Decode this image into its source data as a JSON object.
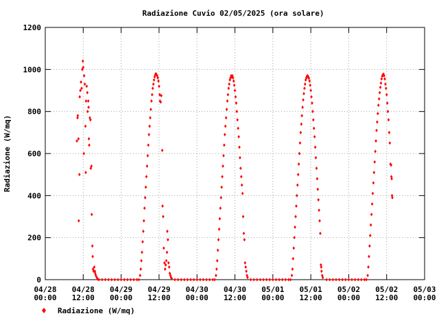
{
  "chart_data": {
    "type": "scatter",
    "title": "Radiazione Cuvio 02/05/2025 (ora solare)",
    "xlabel": "",
    "ylabel": "Radiazione (W/mq)",
    "x_unit": "hours since 04/28 00:00",
    "xlim": [
      0,
      120
    ],
    "ylim": [
      0,
      1200
    ],
    "grid": true,
    "legend_position": "bottom-left",
    "yticks": [
      0,
      200,
      400,
      600,
      800,
      1000,
      1200
    ],
    "xticks": [
      {
        "x": 0,
        "date": "04/28",
        "time": "00:00"
      },
      {
        "x": 12,
        "date": "04/28",
        "time": "12:00"
      },
      {
        "x": 24,
        "date": "04/29",
        "time": "00:00"
      },
      {
        "x": 36,
        "date": "04/29",
        "time": "12:00"
      },
      {
        "x": 48,
        "date": "04/30",
        "time": "00:00"
      },
      {
        "x": 60,
        "date": "04/30",
        "time": "12:00"
      },
      {
        "x": 72,
        "date": "05/01",
        "time": "00:00"
      },
      {
        "x": 84,
        "date": "05/01",
        "time": "12:00"
      },
      {
        "x": 96,
        "date": "05/02",
        "time": "00:00"
      },
      {
        "x": 108,
        "date": "05/02",
        "time": "12:00"
      },
      {
        "x": 120,
        "date": "05/03",
        "time": "00:00"
      }
    ],
    "series": [
      {
        "name": "Radiazione (W/mq)",
        "color": "#ff0000",
        "points": [
          [
            10.0,
            660
          ],
          [
            10.2,
            770
          ],
          [
            10.3,
            780
          ],
          [
            10.5,
            670
          ],
          [
            10.6,
            280
          ],
          [
            10.8,
            500
          ],
          [
            10.9,
            870
          ],
          [
            11.1,
            900
          ],
          [
            11.3,
            940
          ],
          [
            11.5,
            910
          ],
          [
            11.7,
            1000
          ],
          [
            11.9,
            1040
          ],
          [
            12.0,
            1010
          ],
          [
            12.2,
            600
          ],
          [
            12.3,
            970
          ],
          [
            12.5,
            930
          ],
          [
            12.7,
            730
          ],
          [
            12.8,
            510
          ],
          [
            12.9,
            850
          ],
          [
            13.1,
            920
          ],
          [
            13.3,
            890
          ],
          [
            13.4,
            800
          ],
          [
            13.6,
            850
          ],
          [
            13.7,
            820
          ],
          [
            13.8,
            670
          ],
          [
            13.9,
            640
          ],
          [
            14.1,
            770
          ],
          [
            14.3,
            760
          ],
          [
            14.4,
            530
          ],
          [
            14.6,
            540
          ],
          [
            14.7,
            310
          ],
          [
            14.9,
            160
          ],
          [
            15.0,
            110
          ],
          [
            15.1,
            50
          ],
          [
            15.3,
            40
          ],
          [
            15.5,
            60
          ],
          [
            15.7,
            40
          ],
          [
            15.8,
            30
          ],
          [
            16.0,
            20
          ],
          [
            16.3,
            10
          ],
          [
            16.6,
            2
          ],
          [
            17,
            0
          ],
          [
            18,
            0
          ],
          [
            19,
            0
          ],
          [
            20,
            0
          ],
          [
            21,
            0
          ],
          [
            22,
            0
          ],
          [
            23,
            0
          ],
          [
            24,
            0
          ],
          [
            25,
            0
          ],
          [
            26,
            0
          ],
          [
            27,
            0
          ],
          [
            28,
            0
          ],
          [
            29,
            0
          ],
          [
            29.6,
            0
          ],
          [
            30.0,
            20
          ],
          [
            30.2,
            50
          ],
          [
            30.4,
            90
          ],
          [
            30.6,
            130
          ],
          [
            30.8,
            180
          ],
          [
            31.0,
            230
          ],
          [
            31.2,
            280
          ],
          [
            31.4,
            340
          ],
          [
            31.6,
            390
          ],
          [
            31.8,
            440
          ],
          [
            32.0,
            490
          ],
          [
            32.2,
            540
          ],
          [
            32.4,
            590
          ],
          [
            32.6,
            640
          ],
          [
            32.8,
            690
          ],
          [
            33.0,
            730
          ],
          [
            33.2,
            770
          ],
          [
            33.4,
            810
          ],
          [
            33.6,
            850
          ],
          [
            33.8,
            880
          ],
          [
            34.0,
            910
          ],
          [
            34.2,
            930
          ],
          [
            34.4,
            950
          ],
          [
            34.6,
            965
          ],
          [
            34.8,
            975
          ],
          [
            35.0,
            980
          ],
          [
            35.2,
            975
          ],
          [
            35.4,
            970
          ],
          [
            35.6,
            960
          ],
          [
            35.8,
            945
          ],
          [
            36.0,
            920
          ],
          [
            36.2,
            880
          ],
          [
            36.3,
            850
          ],
          [
            36.5,
            845
          ],
          [
            36.7,
            875
          ],
          [
            37.0,
            615
          ],
          [
            37.1,
            350
          ],
          [
            37.3,
            300
          ],
          [
            37.5,
            150
          ],
          [
            37.7,
            80
          ],
          [
            37.9,
            50
          ],
          [
            38.1,
            70
          ],
          [
            38.3,
            90
          ],
          [
            38.5,
            130
          ],
          [
            38.6,
            230
          ],
          [
            38.8,
            190
          ],
          [
            39.0,
            80
          ],
          [
            39.2,
            60
          ],
          [
            39.4,
            30
          ],
          [
            39.6,
            20
          ],
          [
            39.8,
            10
          ],
          [
            40.0,
            5
          ],
          [
            41,
            0
          ],
          [
            42,
            0
          ],
          [
            43,
            0
          ],
          [
            44,
            0
          ],
          [
            45,
            0
          ],
          [
            46,
            0
          ],
          [
            47,
            0
          ],
          [
            48,
            0
          ],
          [
            49,
            0
          ],
          [
            50,
            0
          ],
          [
            51,
            0
          ],
          [
            52,
            0
          ],
          [
            53,
            0
          ],
          [
            53.6,
            0
          ],
          [
            54.0,
            20
          ],
          [
            54.2,
            50
          ],
          [
            54.4,
            90
          ],
          [
            54.6,
            140
          ],
          [
            54.8,
            190
          ],
          [
            55.0,
            240
          ],
          [
            55.2,
            290
          ],
          [
            55.4,
            340
          ],
          [
            55.6,
            390
          ],
          [
            55.8,
            440
          ],
          [
            56.0,
            490
          ],
          [
            56.2,
            540
          ],
          [
            56.4,
            590
          ],
          [
            56.6,
            640
          ],
          [
            56.8,
            690
          ],
          [
            57.0,
            730
          ],
          [
            57.2,
            770
          ],
          [
            57.4,
            810
          ],
          [
            57.6,
            850
          ],
          [
            57.8,
            880
          ],
          [
            58.0,
            910
          ],
          [
            58.2,
            930
          ],
          [
            58.4,
            950
          ],
          [
            58.6,
            960
          ],
          [
            58.8,
            970
          ],
          [
            59.0,
            965
          ],
          [
            59.2,
            970
          ],
          [
            59.4,
            960
          ],
          [
            59.6,
            945
          ],
          [
            59.8,
            925
          ],
          [
            60.0,
            900
          ],
          [
            60.2,
            870
          ],
          [
            60.4,
            840
          ],
          [
            60.6,
            800
          ],
          [
            60.8,
            760
          ],
          [
            61.0,
            720
          ],
          [
            61.2,
            680
          ],
          [
            61.4,
            630
          ],
          [
            61.6,
            580
          ],
          [
            61.8,
            530
          ],
          [
            62.0,
            490
          ],
          [
            62.2,
            450
          ],
          [
            62.4,
            410
          ],
          [
            62.6,
            300
          ],
          [
            62.8,
            220
          ],
          [
            63.0,
            190
          ],
          [
            63.2,
            80
          ],
          [
            63.4,
            60
          ],
          [
            63.6,
            40
          ],
          [
            63.8,
            20
          ],
          [
            64.0,
            10
          ],
          [
            65,
            0
          ],
          [
            66,
            0
          ],
          [
            67,
            0
          ],
          [
            68,
            0
          ],
          [
            69,
            0
          ],
          [
            70,
            0
          ],
          [
            71,
            0
          ],
          [
            72,
            0
          ],
          [
            73,
            0
          ],
          [
            74,
            0
          ],
          [
            75,
            0
          ],
          [
            76,
            0
          ],
          [
            77,
            0
          ],
          [
            77.6,
            0
          ],
          [
            78.0,
            20
          ],
          [
            78.2,
            50
          ],
          [
            78.4,
            100
          ],
          [
            78.6,
            150
          ],
          [
            78.8,
            200
          ],
          [
            79.0,
            250
          ],
          [
            79.2,
            300
          ],
          [
            79.4,
            350
          ],
          [
            79.6,
            400
          ],
          [
            79.8,
            450
          ],
          [
            80.0,
            500
          ],
          [
            80.2,
            550
          ],
          [
            80.4,
            600
          ],
          [
            80.6,
            650
          ],
          [
            80.8,
            700
          ],
          [
            81.0,
            740
          ],
          [
            81.2,
            780
          ],
          [
            81.4,
            820
          ],
          [
            81.6,
            855
          ],
          [
            81.8,
            885
          ],
          [
            82.0,
            910
          ],
          [
            82.2,
            930
          ],
          [
            82.4,
            950
          ],
          [
            82.6,
            960
          ],
          [
            82.8,
            968
          ],
          [
            83.0,
            970
          ],
          [
            83.2,
            965
          ],
          [
            83.4,
            958
          ],
          [
            83.6,
            945
          ],
          [
            83.8,
            925
          ],
          [
            84.0,
            900
          ],
          [
            84.2,
            870
          ],
          [
            84.4,
            840
          ],
          [
            84.6,
            800
          ],
          [
            84.8,
            760
          ],
          [
            85.0,
            720
          ],
          [
            85.2,
            680
          ],
          [
            85.4,
            630
          ],
          [
            85.6,
            580
          ],
          [
            85.8,
            530
          ],
          [
            86.0,
            480
          ],
          [
            86.2,
            430
          ],
          [
            86.4,
            380
          ],
          [
            86.6,
            330
          ],
          [
            86.8,
            280
          ],
          [
            87.0,
            220
          ],
          [
            87.2,
            70
          ],
          [
            87.3,
            60
          ],
          [
            87.4,
            40
          ],
          [
            87.6,
            20
          ],
          [
            87.8,
            10
          ],
          [
            89,
            0
          ],
          [
            90,
            0
          ],
          [
            91,
            0
          ],
          [
            92,
            0
          ],
          [
            93,
            0
          ],
          [
            94,
            0
          ],
          [
            95,
            0
          ],
          [
            96,
            0
          ],
          [
            97,
            0
          ],
          [
            98,
            0
          ],
          [
            99,
            0
          ],
          [
            100,
            0
          ],
          [
            101,
            0
          ],
          [
            101.6,
            0
          ],
          [
            102.0,
            20
          ],
          [
            102.2,
            60
          ],
          [
            102.4,
            110
          ],
          [
            102.6,
            160
          ],
          [
            102.8,
            210
          ],
          [
            103.0,
            260
          ],
          [
            103.2,
            310
          ],
          [
            103.4,
            360
          ],
          [
            103.6,
            410
          ],
          [
            103.8,
            460
          ],
          [
            104.0,
            510
          ],
          [
            104.2,
            560
          ],
          [
            104.4,
            610
          ],
          [
            104.6,
            660
          ],
          [
            104.8,
            710
          ],
          [
            105.0,
            750
          ],
          [
            105.2,
            790
          ],
          [
            105.4,
            830
          ],
          [
            105.6,
            860
          ],
          [
            105.8,
            890
          ],
          [
            106.0,
            915
          ],
          [
            106.2,
            935
          ],
          [
            106.4,
            955
          ],
          [
            106.6,
            968
          ],
          [
            106.8,
            975
          ],
          [
            107.0,
            978
          ],
          [
            107.2,
            970
          ],
          [
            107.4,
            955
          ],
          [
            107.6,
            930
          ],
          [
            107.8,
            910
          ],
          [
            108.0,
            880
          ],
          [
            108.2,
            840
          ],
          [
            108.4,
            800
          ],
          [
            108.6,
            760
          ],
          [
            108.8,
            700
          ],
          [
            109.0,
            650
          ],
          [
            109.2,
            550
          ],
          [
            109.4,
            545
          ],
          [
            109.5,
            490
          ],
          [
            109.6,
            480
          ],
          [
            109.7,
            400
          ],
          [
            109.8,
            390
          ]
        ]
      }
    ]
  }
}
